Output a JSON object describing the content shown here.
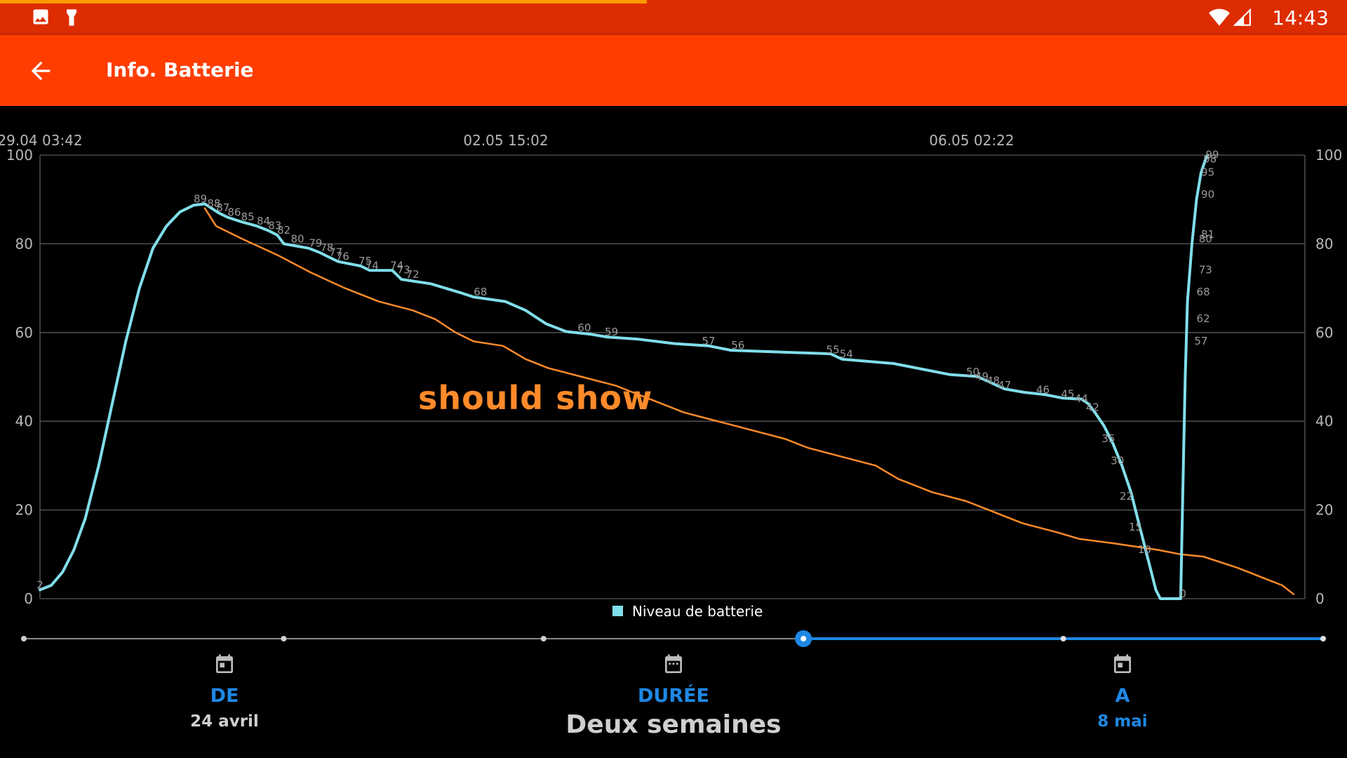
{
  "status_bar": {
    "time": "14:43",
    "left_icons": [
      "image-icon",
      "flashlight-icon"
    ],
    "right_icons": [
      "wifi-icon",
      "signal-icon"
    ],
    "progress_fraction": 0.48
  },
  "app_bar": {
    "back_icon": "arrow-back-icon",
    "title": "Info. Batterie"
  },
  "chart_data": {
    "type": "line",
    "x_tick_labels": [
      "29.04 03:42",
      "02.05 15:02",
      "06.05 02:22"
    ],
    "y_ticks": [
      "0",
      "20",
      "40",
      "60",
      "80",
      "100"
    ],
    "ylim": [
      0,
      100
    ],
    "grid": true,
    "legend": {
      "placement": "bottom-center",
      "entries": [
        "Niveau de batterie"
      ]
    },
    "annotation": "should show",
    "series": [
      {
        "name": "Niveau de batterie",
        "color": "#80deea",
        "points": [
          [
            0,
            2
          ],
          [
            0.5,
            3
          ],
          [
            1,
            6
          ],
          [
            1.5,
            11
          ],
          [
            2,
            18
          ],
          [
            2.6,
            30
          ],
          [
            3.2,
            44
          ],
          [
            3.8,
            58
          ],
          [
            4.4,
            70
          ],
          [
            5,
            79
          ],
          [
            5.6,
            84
          ],
          [
            6.2,
            87.2
          ],
          [
            6.8,
            88.7
          ],
          [
            7.3,
            89
          ],
          [
            7.6,
            88
          ],
          [
            7.9,
            87
          ],
          [
            8.3,
            86
          ],
          [
            8.9,
            85
          ],
          [
            9.6,
            84
          ],
          [
            10.1,
            83
          ],
          [
            10.5,
            82
          ],
          [
            10.8,
            80
          ],
          [
            11.9,
            79
          ],
          [
            12.4,
            78
          ],
          [
            12.8,
            77
          ],
          [
            13.2,
            76
          ],
          [
            14.2,
            75
          ],
          [
            14.6,
            74
          ],
          [
            15.6,
            74
          ],
          [
            16,
            72
          ],
          [
            17.3,
            71
          ],
          [
            18.6,
            69
          ],
          [
            19.2,
            68
          ],
          [
            20.6,
            67
          ],
          [
            21.5,
            65
          ],
          [
            22.4,
            62
          ],
          [
            23.3,
            60.2
          ],
          [
            24.4,
            59.6
          ],
          [
            25.1,
            59
          ],
          [
            26.5,
            58.5
          ],
          [
            28.1,
            57.5
          ],
          [
            29.6,
            57
          ],
          [
            30.6,
            56
          ],
          [
            35,
            55.2
          ],
          [
            35.5,
            54
          ],
          [
            37.8,
            53
          ],
          [
            40.3,
            50.5
          ],
          [
            41.5,
            50.1
          ],
          [
            42.7,
            47.3
          ],
          [
            43.6,
            46.5
          ],
          [
            44.5,
            46
          ],
          [
            45.3,
            45.2
          ],
          [
            46.1,
            45
          ],
          [
            46.4,
            44
          ],
          [
            46.7,
            42
          ],
          [
            47.1,
            39
          ],
          [
            47.5,
            35
          ],
          [
            47.9,
            30
          ],
          [
            48.3,
            24
          ],
          [
            48.6,
            18
          ],
          [
            48.9,
            12
          ],
          [
            49.2,
            6
          ],
          [
            49.4,
            2
          ],
          [
            49.6,
            0
          ],
          [
            50.5,
            0
          ],
          [
            50.6,
            25
          ],
          [
            50.7,
            50
          ],
          [
            50.8,
            67
          ],
          [
            51,
            80
          ],
          [
            51.2,
            90
          ],
          [
            51.4,
            96
          ],
          [
            51.6,
            99
          ],
          [
            51.7,
            100
          ]
        ],
        "point_labels": [
          [
            0,
            2,
            "2"
          ],
          [
            7.1,
            89,
            "89"
          ],
          [
            7.7,
            88,
            "88"
          ],
          [
            8.1,
            87,
            "87"
          ],
          [
            8.6,
            86,
            "86"
          ],
          [
            9.2,
            85,
            "85"
          ],
          [
            9.9,
            84,
            "84"
          ],
          [
            10.4,
            83,
            "83"
          ],
          [
            10.8,
            82,
            "82"
          ],
          [
            11.4,
            80,
            "80"
          ],
          [
            12.2,
            79,
            "79"
          ],
          [
            12.7,
            78,
            "78"
          ],
          [
            13.1,
            77,
            "77"
          ],
          [
            13.4,
            76,
            "76"
          ],
          [
            14.4,
            75,
            "75"
          ],
          [
            14.7,
            74,
            "74"
          ],
          [
            15.8,
            74,
            "74"
          ],
          [
            16.1,
            73,
            "73"
          ],
          [
            16.5,
            72,
            "72"
          ],
          [
            19.5,
            68,
            "68"
          ],
          [
            24.1,
            60,
            "60"
          ],
          [
            25.3,
            59,
            "59"
          ],
          [
            29.6,
            57,
            "57"
          ],
          [
            30.9,
            56,
            "56"
          ],
          [
            35.1,
            55,
            "55"
          ],
          [
            35.7,
            54,
            "54"
          ],
          [
            41.3,
            50,
            "50"
          ],
          [
            41.7,
            49,
            "49"
          ],
          [
            42.2,
            48,
            "48"
          ],
          [
            42.7,
            47,
            "47"
          ],
          [
            44.4,
            46,
            "46"
          ],
          [
            45.5,
            45,
            "45"
          ],
          [
            46.1,
            44,
            "44"
          ],
          [
            46.6,
            42,
            "42"
          ],
          [
            47.3,
            35,
            "35"
          ],
          [
            47.7,
            30,
            "30"
          ],
          [
            48.1,
            22,
            "22"
          ],
          [
            48.5,
            15,
            "15"
          ],
          [
            48.9,
            10,
            "10"
          ],
          [
            50.6,
            0,
            "0"
          ],
          [
            51.4,
            57,
            "57"
          ],
          [
            51.5,
            62,
            "62"
          ],
          [
            51.5,
            68,
            "68"
          ],
          [
            51.6,
            73,
            "73"
          ],
          [
            51.6,
            80,
            "80"
          ],
          [
            51.7,
            81,
            "81"
          ],
          [
            51.7,
            90,
            "90"
          ],
          [
            51.7,
            95,
            "95"
          ],
          [
            51.8,
            98,
            "98"
          ],
          [
            51.9,
            99,
            "99"
          ]
        ]
      },
      {
        "color": "#ff8a2a",
        "points": [
          [
            7.3,
            88
          ],
          [
            7.8,
            84
          ],
          [
            9,
            81
          ],
          [
            10.5,
            77.5
          ],
          [
            12,
            73.5
          ],
          [
            13.5,
            70
          ],
          [
            15,
            67
          ],
          [
            16.5,
            65
          ],
          [
            17.5,
            63
          ],
          [
            18.4,
            60
          ],
          [
            19.2,
            58
          ],
          [
            20.5,
            57
          ],
          [
            21.5,
            54
          ],
          [
            22.5,
            52
          ],
          [
            24,
            50
          ],
          [
            25.5,
            48
          ],
          [
            27,
            45
          ],
          [
            28.5,
            42
          ],
          [
            30,
            40
          ],
          [
            31.5,
            38
          ],
          [
            33,
            36
          ],
          [
            34,
            34
          ],
          [
            35.5,
            32
          ],
          [
            37,
            30
          ],
          [
            38,
            27
          ],
          [
            39.5,
            24
          ],
          [
            41,
            22
          ],
          [
            42,
            20
          ],
          [
            43.5,
            17
          ],
          [
            45,
            15
          ],
          [
            46,
            13.5
          ],
          [
            47.5,
            12.5
          ],
          [
            49.5,
            11
          ],
          [
            50.5,
            10
          ],
          [
            51.5,
            9.5
          ],
          [
            53,
            7
          ],
          [
            54,
            5
          ],
          [
            55,
            3
          ],
          [
            55.5,
            1
          ]
        ]
      }
    ]
  },
  "range_slider": {
    "stops": 6,
    "selected_index": 3,
    "active_color": "#1e88e5",
    "inactive_color": "#888888"
  },
  "date_range": {
    "from": {
      "label": "DE",
      "value": "24 avril",
      "icon": "calendar-icon"
    },
    "duration": {
      "label": "DURÉE",
      "value": "Deux semaines",
      "icon": "calendar-icon"
    },
    "to": {
      "label": "A",
      "value": "8 mai",
      "icon": "calendar-icon"
    }
  }
}
